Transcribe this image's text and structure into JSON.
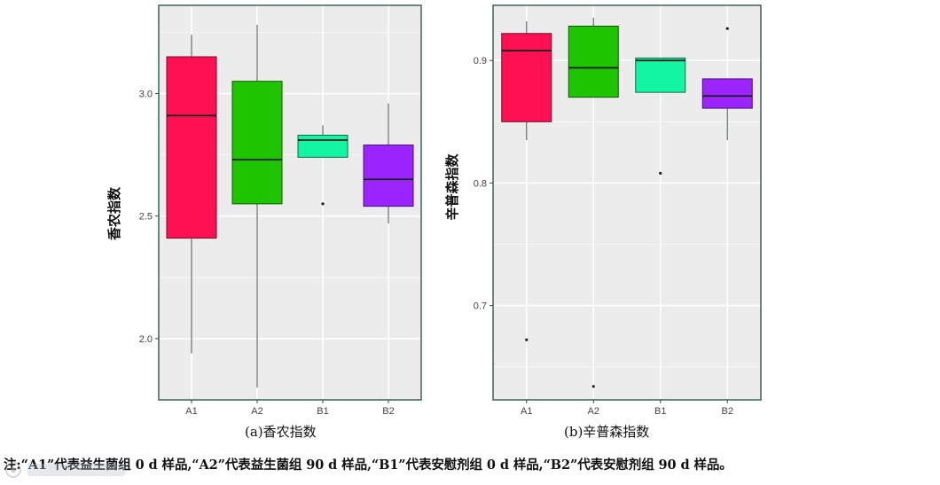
{
  "chart_data": [
    {
      "type": "box",
      "panel_title": "(a)香农指数",
      "ylabel": "香农指数",
      "xlabel": "",
      "categories": [
        "A1",
        "A2",
        "B1",
        "B2"
      ],
      "ylim": [
        1.75,
        3.36
      ],
      "yticks": [
        2.0,
        2.5,
        3.0
      ],
      "ytick_labels": [
        "2.0",
        "2.5",
        "3.0"
      ],
      "grid": true,
      "boxes": [
        {
          "label": "A1",
          "color": "#ff1053",
          "whisker_low": 1.94,
          "q1": 2.41,
          "median": 2.91,
          "q3": 3.15,
          "whisker_high": 3.24,
          "outliers": []
        },
        {
          "label": "A2",
          "color": "#1fc400",
          "whisker_low": 1.8,
          "q1": 2.55,
          "median": 2.73,
          "q3": 3.05,
          "whisker_high": 3.28,
          "outliers": []
        },
        {
          "label": "B1",
          "color": "#12f5a2",
          "whisker_low": 2.74,
          "q1": 2.74,
          "median": 2.81,
          "q3": 2.83,
          "whisker_high": 2.87,
          "outliers": [
            2.55
          ]
        },
        {
          "label": "B2",
          "color": "#9b24ff",
          "whisker_low": 2.47,
          "q1": 2.54,
          "median": 2.65,
          "q3": 2.79,
          "whisker_high": 2.96,
          "outliers": []
        }
      ]
    },
    {
      "type": "box",
      "panel_title": "(b)辛普森指数",
      "ylabel": "辛普森指数",
      "xlabel": "",
      "categories": [
        "A1",
        "A2",
        "B1",
        "B2"
      ],
      "ylim": [
        0.623,
        0.945
      ],
      "yticks": [
        0.7,
        0.8,
        0.9
      ],
      "ytick_labels": [
        "0.7",
        "0.8",
        "0.9"
      ],
      "grid": true,
      "boxes": [
        {
          "label": "A1",
          "color": "#ff1053",
          "whisker_low": 0.835,
          "q1": 0.85,
          "median": 0.908,
          "q3": 0.922,
          "whisker_high": 0.932,
          "outliers": [
            0.672
          ]
        },
        {
          "label": "A2",
          "color": "#1fc400",
          "whisker_low": 0.87,
          "q1": 0.87,
          "median": 0.894,
          "q3": 0.928,
          "whisker_high": 0.935,
          "outliers": [
            0.634
          ]
        },
        {
          "label": "B1",
          "color": "#12f5a2",
          "whisker_low": 0.874,
          "q1": 0.874,
          "median": 0.9,
          "q3": 0.902,
          "whisker_high": 0.902,
          "outliers": [
            0.808
          ]
        },
        {
          "label": "B2",
          "color": "#9b24ff",
          "whisker_low": 0.835,
          "q1": 0.861,
          "median": 0.871,
          "q3": 0.885,
          "whisker_high": 0.885,
          "outliers": [
            0.926
          ]
        }
      ]
    }
  ],
  "note": "注:“A1”代表益生菌组 0  d 样品,“A2”代表益生菌组 90  d 样品,“B1”代表安慰剂组 0  d 样品,“B2”代表安慰剂组 90  d 样品。",
  "colors": {
    "panel_bg": "#ececec",
    "grid": "#ffffff",
    "frame": "#4a6a63"
  }
}
